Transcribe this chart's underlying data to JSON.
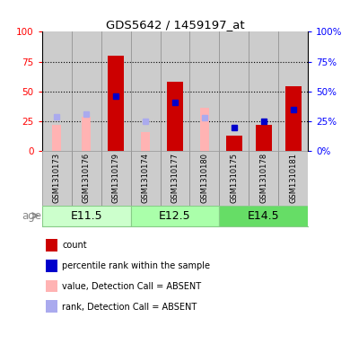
{
  "title": "GDS5642 / 1459197_at",
  "samples": [
    "GSM1310173",
    "GSM1310176",
    "GSM1310179",
    "GSM1310174",
    "GSM1310177",
    "GSM1310180",
    "GSM1310175",
    "GSM1310178",
    "GSM1310181"
  ],
  "age_groups": [
    {
      "label": "E11.5",
      "start": 0,
      "end": 3,
      "color": "#ccffcc"
    },
    {
      "label": "E12.5",
      "start": 3,
      "end": 6,
      "color": "#aaffaa"
    },
    {
      "label": "E14.5",
      "start": 6,
      "end": 9,
      "color": "#66dd66"
    }
  ],
  "red_bars": [
    0,
    0,
    80,
    0,
    58,
    0,
    13,
    22,
    54
  ],
  "pink_bars": [
    22,
    29,
    0,
    16,
    0,
    36,
    0,
    0,
    0
  ],
  "blue_squares": [
    null,
    null,
    46,
    null,
    41,
    null,
    20,
    25,
    35
  ],
  "light_blue_squares": [
    29,
    31,
    null,
    25,
    null,
    28,
    null,
    null,
    null
  ],
  "ylim": [
    0,
    100
  ],
  "yticks": [
    0,
    25,
    50,
    75,
    100
  ],
  "red_color": "#cc0000",
  "pink_color": "#ffb3b3",
  "blue_color": "#0000cc",
  "light_blue_color": "#aaaaee",
  "age_label": "age",
  "age_border_color": "#88cc88",
  "bar_bg_color": "#cccccc",
  "bar_border_color": "#888888",
  "legend": [
    {
      "color": "#cc0000",
      "label": "count"
    },
    {
      "color": "#0000cc",
      "label": "percentile rank within the sample"
    },
    {
      "color": "#ffb3b3",
      "label": "value, Detection Call = ABSENT"
    },
    {
      "color": "#aaaaee",
      "label": "rank, Detection Call = ABSENT"
    }
  ]
}
